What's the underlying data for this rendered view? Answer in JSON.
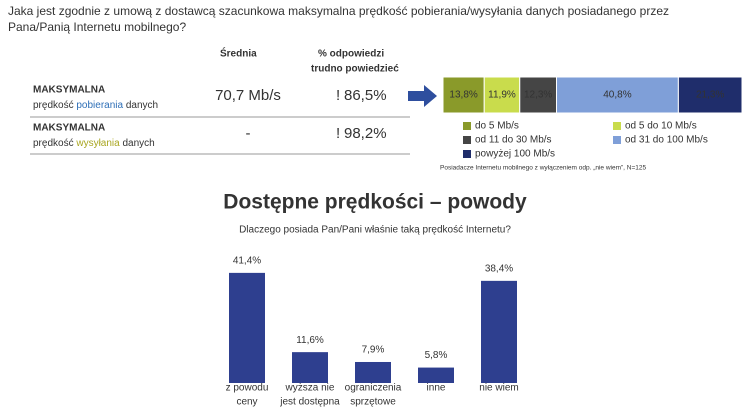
{
  "question": [
    "Jaka jest zgodnie z umową z dostawcą szacunkowa maksymalna prędkość pobierania/wysyłania danych posiadanego przez",
    "Pana/Panią Internetu mobilnego?"
  ],
  "table": {
    "columns": [
      [
        "Średnia"
      ],
      [
        "% odpowiedzi",
        "trudno powiedzieć"
      ]
    ],
    "rows": [
      {
        "label": "MAKSYMALNA",
        "sub": [
          "prędkość ",
          "pobierania",
          " danych"
        ],
        "mean": "70,7 Mb/s",
        "flag": "!",
        "hard": "86,5%"
      },
      {
        "label": "MAKSYMALNA",
        "sub": [
          "prędkość ",
          "wysyłania",
          " danych"
        ],
        "mean": "-",
        "flag": "!",
        "hard": "98,2%"
      }
    ]
  },
  "chart_data": [
    {
      "type": "stacked_bar",
      "series": [
        {
          "name": "do 5 Mb/s",
          "color": "#8a9a2a",
          "values": [
            13.8
          ],
          "value_labels": [
            "13,8%"
          ]
        },
        {
          "name": "od 5 do 10 Mb/s",
          "color": "#c9dc4c",
          "values": [
            11.9
          ],
          "value_labels": [
            "11,9%"
          ]
        },
        {
          "name": "od 11 do 30 Mb/s",
          "color": "#454545",
          "values": [
            12.3
          ],
          "value_labels": [
            "12,3%"
          ]
        },
        {
          "name": "od 31 do 100 Mb/s",
          "color": "#7f9fd8",
          "values": [
            40.8
          ],
          "value_labels": [
            "40,8%"
          ]
        },
        {
          "name": "powyżej 100 Mb/s",
          "color": "#1f2d6b",
          "values": [
            21.3
          ],
          "value_labels": [
            "21,3%"
          ]
        }
      ],
      "note": "Posiadacze Internetu mobilnego z wyłączeniem odp. „nie wiem”, N=125"
    },
    {
      "type": "bar",
      "title": "Dostępne prędkości – powody",
      "subtitle": "Dlaczego posiada Pan/Pani właśnie taką prędkość Internetu?",
      "categories": [
        [
          "z powodu",
          "ceny"
        ],
        [
          "wyższa nie",
          "jest dostępna"
        ],
        [
          "ograniczenia",
          "sprzętowe"
        ],
        [
          "inne"
        ],
        [
          "nie wiem"
        ]
      ],
      "values": [
        41.4,
        11.6,
        7.9,
        5.8,
        38.4
      ],
      "value_labels": [
        "41,4%",
        "11,6%",
        "7,9%",
        "5,8%",
        "38,4%"
      ],
      "color": "#2e3f8f"
    }
  ]
}
